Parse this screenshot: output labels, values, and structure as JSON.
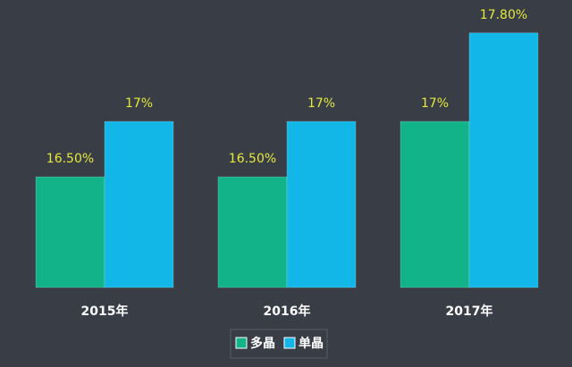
{
  "chart_data": {
    "type": "bar",
    "categories": [
      "2015年",
      "2016年",
      "2017年"
    ],
    "series": [
      {
        "name": "多晶",
        "color": "#13b38a",
        "values": [
          16.5,
          16.5,
          17
        ],
        "value_labels": [
          "16.50%",
          "16.50%",
          "17%"
        ]
      },
      {
        "name": "单晶",
        "color": "#12b7e8",
        "values": [
          17,
          17,
          17.8
        ],
        "value_labels": [
          "17%",
          "17%",
          "17.80%"
        ]
      }
    ],
    "ylim": [
      15.5,
      18
    ],
    "legend": "bottom"
  }
}
